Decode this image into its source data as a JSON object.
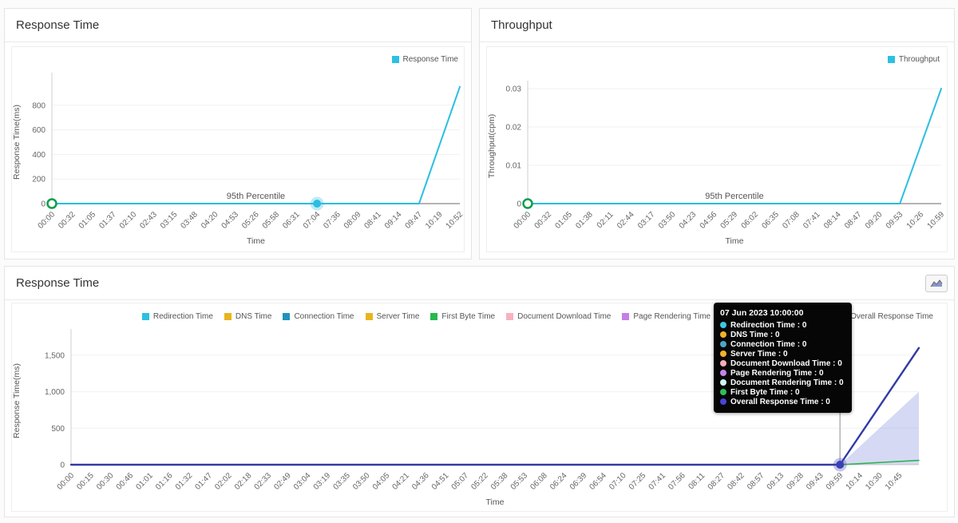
{
  "panels": {
    "response_time_small": {
      "title": "Response Time",
      "legend": [
        {
          "label": "Response Time",
          "color": "#2ec0e2"
        }
      ]
    },
    "throughput": {
      "title": "Throughput",
      "legend": [
        {
          "label": "Throughput",
          "color": "#2ec0e2"
        }
      ]
    },
    "response_time_detail": {
      "title": "Response Time",
      "toolbar_icon": "area-chart-icon",
      "legend": [
        {
          "label": "Redirection Time",
          "color": "#2ec0e2"
        },
        {
          "label": "DNS Time",
          "color": "#e9b41f"
        },
        {
          "label": "Connection Time",
          "color": "#1f93be"
        },
        {
          "label": "Server Time",
          "color": "#e9b41f"
        },
        {
          "label": "First Byte Time",
          "color": "#27b94c"
        },
        {
          "label": "Document Download Time",
          "color": "#f6b3be"
        },
        {
          "label": "Page Rendering Time",
          "color": "#c57fe6"
        },
        {
          "label": "Document Rendering Time",
          "color": "#c4f0e4"
        },
        {
          "label": "Overall Response Time",
          "color": "#2f37a0"
        }
      ],
      "tooltip": {
        "title": "07 Jun 2023 10:00:00",
        "rows": [
          {
            "label": "Redirection Time",
            "value": "0",
            "color": "#3ec6e0"
          },
          {
            "label": "DNS Time",
            "value": "0",
            "color": "#efb32a"
          },
          {
            "label": "Connection Time",
            "value": "0",
            "color": "#49a8c4"
          },
          {
            "label": "Server Time",
            "value": "0",
            "color": "#efb32a"
          },
          {
            "label": "Document Download Time",
            "value": "0",
            "color": "#f6aeb9"
          },
          {
            "label": "Page Rendering Time",
            "value": "0",
            "color": "#c583e8"
          },
          {
            "label": "Document Rendering Time",
            "value": "0",
            "color": "#cdf6ee"
          },
          {
            "label": "First Byte Time",
            "value": "0",
            "color": "#2fbe5a"
          },
          {
            "label": "Overall Response Time",
            "value": "0",
            "color": "#4a43db"
          }
        ]
      }
    }
  },
  "chart_data": [
    {
      "id": "response-time-small",
      "type": "line",
      "title": "Response Time",
      "xlabel": "Time",
      "ylabel": "Response Time(ms)",
      "x_categories": [
        "00:00",
        "00:32",
        "01:05",
        "01:37",
        "02:10",
        "02:43",
        "03:15",
        "03:48",
        "04:20",
        "04:53",
        "05:26",
        "05:58",
        "06:31",
        "07:04",
        "07:36",
        "08:09",
        "08:41",
        "09:14",
        "09:47",
        "10:19",
        "10:52"
      ],
      "yticks": [
        {
          "v": 0,
          "label": "0"
        },
        {
          "v": 200,
          "label": "200"
        },
        {
          "v": 400,
          "label": "400"
        },
        {
          "v": 600,
          "label": "600"
        },
        {
          "v": 800,
          "label": "800"
        }
      ],
      "ylim": [
        0,
        1000
      ],
      "grid": true,
      "legend_position": "top-right",
      "series": [
        {
          "name": "Response Time",
          "color": "#2bbee0",
          "width": 2,
          "anchors": [
            [
              0,
              0
            ],
            [
              18,
              0
            ],
            [
              20,
              950
            ]
          ]
        }
      ],
      "percentile_line": {
        "label": "95th Percentile",
        "value": 0
      },
      "markers": [
        {
          "type": "open-circle",
          "x": 0,
          "v": 0,
          "color": "#0c9d49"
        },
        {
          "type": "halo-dot",
          "x": 13,
          "v": 0,
          "color": "#2bbee0"
        }
      ],
      "layout": {
        "plot": {
          "l": 59,
          "r": 570,
          "t": 90,
          "b": 244
        },
        "xdiv": 20
      }
    },
    {
      "id": "throughput",
      "type": "line",
      "title": "Throughput",
      "xlabel": "Time",
      "ylabel": "Throughput(cpm)",
      "x_categories": [
        "00:00",
        "00:32",
        "01:05",
        "01:38",
        "02:11",
        "02:44",
        "03:17",
        "03:50",
        "04:23",
        "04:56",
        "05:29",
        "06:02",
        "06:35",
        "07:08",
        "07:41",
        "08:14",
        "08:47",
        "09:20",
        "09:53",
        "10:26",
        "10:59"
      ],
      "yticks": [
        {
          "v": 0,
          "label": "0"
        },
        {
          "v": 0.01,
          "label": "0.01"
        },
        {
          "v": 0.02,
          "label": "0.02"
        },
        {
          "v": 0.03,
          "label": "0.03"
        }
      ],
      "ylim": [
        0,
        0.03
      ],
      "grid": true,
      "legend_position": "top-right",
      "series": [
        {
          "name": "Throughput",
          "color": "#2bbee0",
          "width": 2,
          "anchors": [
            [
              0,
              0
            ],
            [
              18,
              0
            ],
            [
              20,
              0.03
            ]
          ]
        }
      ],
      "percentile_line": {
        "label": "95th Percentile",
        "value": 0
      },
      "markers": [
        {
          "type": "open-circle",
          "x": 0,
          "v": 0,
          "color": "#0c9d49"
        }
      ],
      "layout": {
        "plot": {
          "l": 60,
          "r": 578,
          "t": 100,
          "b": 244
        },
        "xdiv": 20
      }
    },
    {
      "id": "response-time-detail",
      "type": "line",
      "title": "Response Time",
      "xlabel": "Time",
      "ylabel": "Response Time(ms)",
      "x_categories": [
        "00:00",
        "00:15",
        "00:30",
        "00:46",
        "01:01",
        "01:16",
        "01:32",
        "01:47",
        "02:02",
        "02:18",
        "02:33",
        "02:49",
        "03:04",
        "03:19",
        "03:35",
        "03:50",
        "04:05",
        "04:21",
        "04:36",
        "04:51",
        "05:07",
        "05:22",
        "05:38",
        "05:53",
        "06:08",
        "06:24",
        "06:39",
        "06:54",
        "07:10",
        "07:25",
        "07:41",
        "07:56",
        "08:11",
        "08:27",
        "08:42",
        "08:57",
        "09:13",
        "09:28",
        "09:43",
        "09:59",
        "10:14",
        "10:30",
        "10:45"
      ],
      "yticks": [
        {
          "v": 0,
          "label": "0"
        },
        {
          "v": 500,
          "label": "500"
        },
        {
          "v": 1000,
          "label": "1,000"
        },
        {
          "v": 1500,
          "label": "1,500"
        }
      ],
      "ylim": [
        0,
        1750
      ],
      "grid": true,
      "legend_position": "top-right",
      "series": [
        {
          "name": "area",
          "type": "area",
          "fill": "rgba(130,140,220,0.33)",
          "anchors": [
            [
              39,
              0
            ],
            [
              43,
              1000
            ]
          ]
        },
        {
          "name": "First Byte Time",
          "color": "#2db44e",
          "width": 1.6,
          "anchors": [
            [
              0,
              0
            ],
            [
              39,
              0
            ],
            [
              43,
              60
            ]
          ]
        },
        {
          "name": "Overall Response Time",
          "color": "#333aa6",
          "width": 2.4,
          "anchors": [
            [
              0,
              0
            ],
            [
              39,
              0
            ],
            [
              43,
              1600
            ]
          ]
        }
      ],
      "crosshair": {
        "x": 39
      },
      "markers": [
        {
          "type": "halo-dot",
          "x": 39,
          "v": 0,
          "color": "#3a41b5"
        }
      ],
      "layout": {
        "plot": {
          "l": 83,
          "r": 1145,
          "t": 88,
          "b": 248
        },
        "xdiv": 43
      }
    }
  ]
}
